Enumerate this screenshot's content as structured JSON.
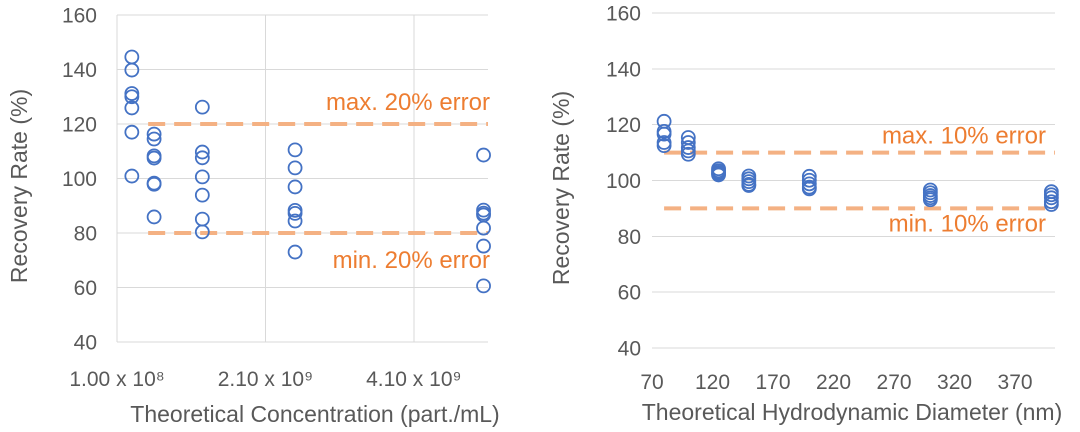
{
  "chart_data": [
    {
      "type": "scatter",
      "xlabel": "Theoretical Concentration (part./mL)",
      "ylabel": "Recovery Rate (%)",
      "xlim": [
        100000000.0,
        5100000000.0
      ],
      "ylim": [
        40,
        160
      ],
      "xticks": [
        100000000.0,
        2100000000.0,
        4100000000.0
      ],
      "xtick_labels": [
        "1.00 x 10⁸",
        "2.10 x 10⁹",
        "4.10 x 10⁹"
      ],
      "yticks": [
        40,
        60,
        80,
        100,
        120,
        140,
        160
      ],
      "ytick_labels": [
        "40",
        "60",
        "80",
        "100",
        "120",
        "140",
        "160"
      ],
      "grid": {
        "horizontal": true,
        "vertical": true
      },
      "series": [
        {
          "color": "#4472C4",
          "points": [
            [
              300000000.0,
              144.6
            ],
            [
              300000000.0,
              139.8
            ],
            [
              300000000.0,
              131.2
            ],
            [
              300000000.0,
              130.0
            ],
            [
              300000000.0,
              125.9
            ],
            [
              300000000.0,
              117.0
            ],
            [
              300000000.0,
              100.9
            ],
            [
              600000000.0,
              116.3
            ],
            [
              600000000.0,
              114.5
            ],
            [
              600000000.0,
              108.3
            ],
            [
              600000000.0,
              107.5
            ],
            [
              600000000.0,
              98.3
            ],
            [
              600000000.0,
              97.9
            ],
            [
              600000000.0,
              85.9
            ],
            [
              1250000000.0,
              126.2
            ],
            [
              1250000000.0,
              109.7
            ],
            [
              1250000000.0,
              107.6
            ],
            [
              1250000000.0,
              100.6
            ],
            [
              1250000000.0,
              93.9
            ],
            [
              1250000000.0,
              85.1
            ],
            [
              1250000000.0,
              80.4
            ],
            [
              2500000000.0,
              110.5
            ],
            [
              2500000000.0,
              103.9
            ],
            [
              2500000000.0,
              96.9
            ],
            [
              2500000000.0,
              88.3
            ],
            [
              2500000000.0,
              87.2
            ],
            [
              2500000000.0,
              84.4
            ],
            [
              2500000000.0,
              73.0
            ],
            [
              5040000000.0,
              108.6
            ],
            [
              5040000000.0,
              88.4
            ],
            [
              5040000000.0,
              87.3
            ],
            [
              5040000000.0,
              86.6
            ],
            [
              5040000000.0,
              81.8
            ],
            [
              5040000000.0,
              75.2
            ],
            [
              5040000000.0,
              60.6
            ]
          ]
        }
      ],
      "reference_lines": [
        {
          "label": "max. 20% error",
          "y": 120,
          "x_range": [
            520000000.0,
            5100000000.0
          ],
          "color": "#F4B183",
          "label_color": "#ED7D31"
        },
        {
          "label": "min. 20% error",
          "y": 80,
          "x_range": [
            520000000.0,
            5100000000.0
          ],
          "color": "#F4B183",
          "label_color": "#ED7D31"
        }
      ]
    },
    {
      "type": "scatter",
      "xlabel": "Theoretical Hydrodynamic Diameter (nm)",
      "ylabel": "Recovery Rate (%)",
      "xlim": [
        70,
        403
      ],
      "ylim": [
        40,
        160
      ],
      "xticks": [
        70,
        120,
        170,
        220,
        270,
        320,
        370
      ],
      "xtick_labels": [
        "70",
        "120",
        "170",
        "220",
        "270",
        "320",
        "370"
      ],
      "yticks": [
        40,
        60,
        80,
        100,
        120,
        140,
        160
      ],
      "ytick_labels": [
        "40",
        "60",
        "80",
        "100",
        "120",
        "140",
        "160"
      ],
      "grid": {
        "horizontal": true,
        "vertical": false
      },
      "series": [
        {
          "color": "#4472C4",
          "points": [
            [
              80,
              121.2
            ],
            [
              80,
              117.6
            ],
            [
              80,
              116.6
            ],
            [
              80,
              113.6
            ],
            [
              80,
              112.5
            ],
            [
              100,
              115.4
            ],
            [
              100,
              113.6
            ],
            [
              100,
              111.8
            ],
            [
              100,
              110.6
            ],
            [
              100,
              109.4
            ],
            [
              125,
              104.2
            ],
            [
              125,
              103.5
            ],
            [
              125,
              102.9
            ],
            [
              125,
              102.4
            ],
            [
              125,
              102.0
            ],
            [
              150,
              101.6
            ],
            [
              150,
              100.6
            ],
            [
              150,
              99.6
            ],
            [
              150,
              98.6
            ],
            [
              150,
              98.2
            ],
            [
              200,
              101.5
            ],
            [
              200,
              100.1
            ],
            [
              200,
              98.8
            ],
            [
              200,
              97.6
            ],
            [
              200,
              97.0
            ],
            [
              300,
              96.6
            ],
            [
              300,
              95.6
            ],
            [
              300,
              94.6
            ],
            [
              300,
              93.8
            ],
            [
              300,
              93.1
            ],
            [
              400,
              96.0
            ],
            [
              400,
              94.9
            ],
            [
              400,
              93.8
            ],
            [
              400,
              92.4
            ],
            [
              400,
              91.4
            ]
          ]
        }
      ],
      "reference_lines": [
        {
          "label": "max. 10% error",
          "y": 110,
          "x_range": [
            80,
            403
          ],
          "color": "#F4B183",
          "label_color": "#ED7D31"
        },
        {
          "label": "min. 10% error",
          "y": 90,
          "x_range": [
            80,
            403
          ],
          "color": "#F4B183",
          "label_color": "#ED7D31"
        }
      ]
    }
  ]
}
